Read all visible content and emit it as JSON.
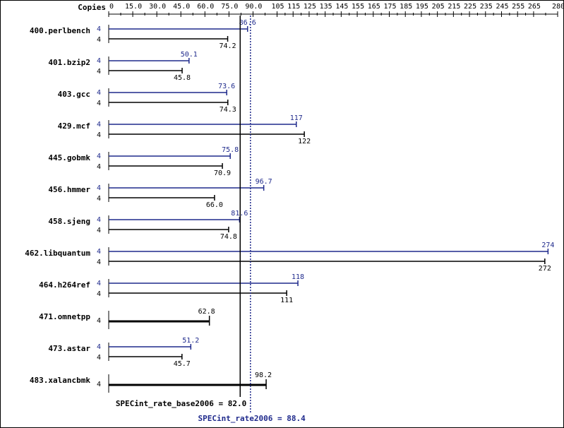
{
  "chart_data": {
    "type": "bar",
    "orientation": "horizontal",
    "copies_label": "Copies",
    "x_ticks": [
      "0",
      "15.0",
      "30.0",
      "45.0",
      "60.0",
      "75.0",
      "90.0",
      "105",
      "115",
      "125",
      "135",
      "145",
      "155",
      "165",
      "175",
      "185",
      "195",
      "205",
      "215",
      "225",
      "235",
      "245",
      "255",
      "265",
      "280"
    ],
    "xlim": [
      0,
      280
    ],
    "colors": {
      "peak": "#1f2a8c",
      "base": "#000000"
    },
    "benchmarks": [
      {
        "name": "400.perlbench",
        "copies_peak": "4",
        "copies_base": "4",
        "peak": 86.6,
        "base": 74.2,
        "peak_label": "86.6",
        "base_label": "74.2"
      },
      {
        "name": "401.bzip2",
        "copies_peak": "4",
        "copies_base": "4",
        "peak": 50.1,
        "base": 45.8,
        "peak_label": "50.1",
        "base_label": "45.8"
      },
      {
        "name": "403.gcc",
        "copies_peak": "4",
        "copies_base": "4",
        "peak": 73.6,
        "base": 74.3,
        "peak_label": "73.6",
        "base_label": "74.3"
      },
      {
        "name": "429.mcf",
        "copies_peak": "4",
        "copies_base": "4",
        "peak": 117,
        "base": 122,
        "peak_label": "117",
        "base_label": "122"
      },
      {
        "name": "445.gobmk",
        "copies_peak": "4",
        "copies_base": "4",
        "peak": 75.8,
        "base": 70.9,
        "peak_label": "75.8",
        "base_label": "70.9"
      },
      {
        "name": "456.hmmer",
        "copies_peak": "4",
        "copies_base": "4",
        "peak": 96.7,
        "base": 66.0,
        "peak_label": "96.7",
        "base_label": "66.0"
      },
      {
        "name": "458.sjeng",
        "copies_peak": "4",
        "copies_base": "4",
        "peak": 81.6,
        "base": 74.8,
        "peak_label": "81.6",
        "base_label": "74.8"
      },
      {
        "name": "462.libquantum",
        "copies_peak": "4",
        "copies_base": "4",
        "peak": 274,
        "base": 272,
        "peak_label": "274",
        "base_label": "272"
      },
      {
        "name": "464.h264ref",
        "copies_peak": "4",
        "copies_base": "4",
        "peak": 118,
        "base": 111,
        "peak_label": "118",
        "base_label": "111"
      },
      {
        "name": "471.omnetpp",
        "copies_single": "4",
        "single": 62.8,
        "single_label": "62.8"
      },
      {
        "name": "473.astar",
        "copies_peak": "4",
        "copies_base": "4",
        "peak": 51.2,
        "base": 45.7,
        "peak_label": "51.2",
        "base_label": "45.7"
      },
      {
        "name": "483.xalancbmk",
        "copies_single": "4",
        "single": 98.2,
        "single_label": "98.2"
      }
    ],
    "base_summary": {
      "label": "SPECint_rate_base2006 = 82.0",
      "value": 82.0
    },
    "peak_summary": {
      "label": "SPECint_rate2006 = 88.4",
      "value": 88.4
    }
  }
}
